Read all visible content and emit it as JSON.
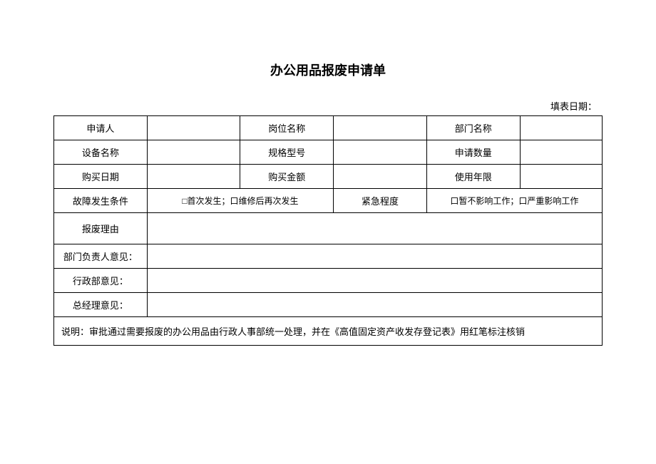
{
  "title": "办公用品报废申请单",
  "dateLabel": "填表日期：",
  "labels": {
    "applicant": "申请人",
    "jobTitle": "岗位名称",
    "deptName": "部门名称",
    "deviceName": "设备名称",
    "specModel": "规格型号",
    "applyQty": "申请数量",
    "purchaseDate": "购买日期",
    "purchaseAmount": "购买金额",
    "useYears": "使用年限",
    "faultCondition": "故障发生条件",
    "urgency": "紧急程度",
    "scrapReason": "报废理由",
    "deptHeadOpinion": "部门负责人意见：",
    "adminOpinion": "行政部意见：",
    "gmOpinion": "总经理意见："
  },
  "checkboxes": {
    "faultOptions": "□首次发生；口维修后再次发生",
    "urgencyOptions": "口暂不影响工作；口严重影响工作"
  },
  "note": "说明：审批通过需要报废的办公用品由行政人事部统一处理，并在《高值固定资产收发存登记表》用红笔标注核销"
}
